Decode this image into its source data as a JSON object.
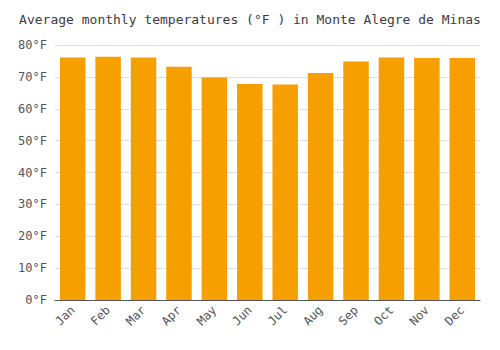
{
  "chart_data": {
    "type": "bar",
    "title": "Average monthly temperatures (°F ) in Monte Alegre de Minas",
    "categories": [
      "Jan",
      "Feb",
      "Mar",
      "Apr",
      "May",
      "Jun",
      "Jul",
      "Aug",
      "Sep",
      "Oct",
      "Nov",
      "Dec"
    ],
    "values": [
      76.1,
      76.3,
      76.1,
      73.2,
      69.8,
      67.8,
      67.6,
      71.2,
      74.8,
      76.1,
      75.9,
      75.9
    ],
    "color": "#F5A000",
    "ylim": [
      0,
      80
    ],
    "yticks": [
      {
        "value": 0,
        "label": "0°F"
      },
      {
        "value": 10,
        "label": "10°F"
      },
      {
        "value": 20,
        "label": "20°F"
      },
      {
        "value": 30,
        "label": "30°F"
      },
      {
        "value": 40,
        "label": "40°F"
      },
      {
        "value": 50,
        "label": "50°F"
      },
      {
        "value": 60,
        "label": "60°F"
      },
      {
        "value": 70,
        "label": "70°F"
      },
      {
        "value": 80,
        "label": "80°F"
      }
    ],
    "grid": true
  }
}
